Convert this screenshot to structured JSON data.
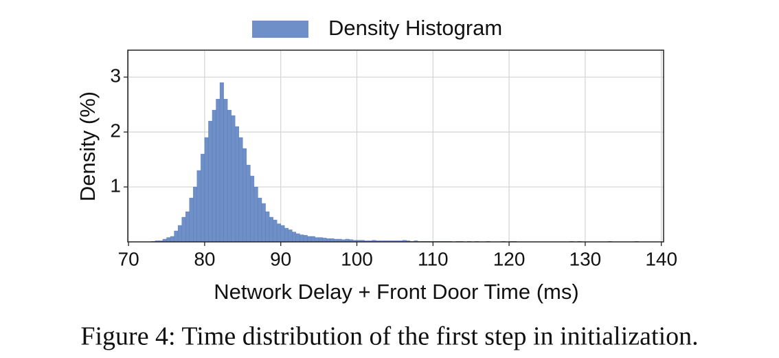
{
  "chart_data": {
    "type": "histogram",
    "legend_label": "Density Histogram",
    "x_label": "Network Delay + Front Door Time (ms)",
    "y_label": "Density (%)",
    "caption": "Figure 4: Time distribution of the first step in initialization.",
    "color": "#6f8fc8",
    "grid": true,
    "legend_position": "top",
    "xlim": [
      69.9,
      140.3
    ],
    "ylim": [
      0,
      3.49
    ],
    "xticks": [
      70,
      80,
      90,
      100,
      110,
      120,
      130,
      140
    ],
    "yticks": [
      1,
      2,
      3
    ],
    "bins": [
      73,
      73.5,
      74,
      74.5,
      75,
      75.5,
      76,
      76.5,
      77,
      77.5,
      78,
      78.5,
      79,
      79.5,
      80,
      80.5,
      81,
      81.5,
      82,
      82.5,
      83,
      83.5,
      84,
      84.5,
      85,
      85.5,
      86,
      86.5,
      87,
      87.5,
      88,
      88.5,
      89,
      89.5,
      90,
      90.5,
      91,
      91.5,
      92,
      92.5,
      93,
      93.5,
      94,
      94.5,
      95,
      95.5,
      96,
      96.5,
      97,
      97.5,
      98,
      98.5,
      99,
      99.5,
      100,
      100.5,
      101,
      101.5,
      102,
      102.5,
      103,
      103.5,
      104,
      104.5,
      105,
      105.5,
      106,
      106.5,
      107,
      107.5,
      108,
      108.5,
      109,
      109.5,
      110,
      110.5,
      111,
      111.5,
      112,
      112.5,
      113,
      113.5,
      114,
      114.5,
      115,
      115.5,
      116,
      116.5,
      117,
      117.5,
      118,
      118.5,
      119,
      119.5,
      120,
      120.5,
      121,
      121.5,
      122,
      122.5,
      123,
      123.5,
      124,
      124.5,
      125,
      125.5,
      126,
      126.5,
      127,
      127.5,
      128,
      128.5,
      129,
      129.5,
      130,
      130.5,
      131,
      131.5,
      132,
      132.5,
      133,
      133.5,
      134,
      134.5,
      135,
      135.5,
      136,
      136.5,
      137
    ],
    "values": [
      0.01,
      0.02,
      0.02,
      0.05,
      0.08,
      0.1,
      0.2,
      0.3,
      0.45,
      0.55,
      0.8,
      1.0,
      1.3,
      1.6,
      1.9,
      2.2,
      2.4,
      2.6,
      2.9,
      2.6,
      2.4,
      2.3,
      2.1,
      1.9,
      1.7,
      1.4,
      1.2,
      1.0,
      0.8,
      0.7,
      0.55,
      0.45,
      0.4,
      0.33,
      0.3,
      0.25,
      0.22,
      0.18,
      0.15,
      0.13,
      0.12,
      0.1,
      0.1,
      0.08,
      0.08,
      0.07,
      0.06,
      0.06,
      0.05,
      0.05,
      0.04,
      0.05,
      0.04,
      0.03,
      0.03,
      0.03,
      0.02,
      0.02,
      0.03,
      0.02,
      0.02,
      0.02,
      0.02,
      0.02,
      0.02,
      0.02,
      0.03,
      0.02,
      0.01,
      0.02,
      0.01,
      0.01,
      0.01,
      0.01,
      0.01,
      0.01,
      0.01,
      0.01,
      0.01,
      0,
      0.01,
      0.01,
      0,
      0.01,
      0,
      0.01,
      0,
      0,
      0.01,
      0,
      0,
      0,
      0.01,
      0,
      0.01,
      0.01,
      0,
      0,
      0,
      0,
      0,
      0,
      0,
      0,
      0,
      0,
      0,
      0,
      0,
      0,
      0.01,
      0,
      0.01,
      0,
      0,
      0,
      0,
      0,
      0,
      0,
      0.01,
      0,
      0,
      0,
      0,
      0,
      0,
      0.01
    ]
  }
}
